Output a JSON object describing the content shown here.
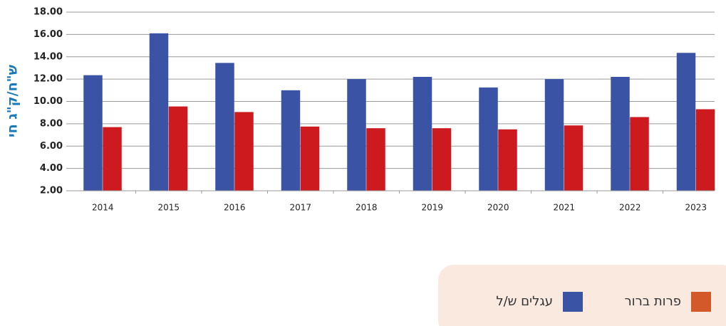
{
  "chart_data": {
    "type": "bar",
    "y_label": "ש\"ח/ק\"ג חי",
    "categories": [
      "2014",
      "2015",
      "2016",
      "2017",
      "2018",
      "2019",
      "2020",
      "2021",
      "2022",
      "2023"
    ],
    "series": [
      {
        "name": "עגלים ש/ל",
        "color": "#3a53a4",
        "legend_color": "#3a53a4",
        "values": [
          12.35,
          16.1,
          13.45,
          11.0,
          12.0,
          12.2,
          11.25,
          12.0,
          12.2,
          14.35
        ]
      },
      {
        "name": "פרות ברור",
        "color": "#cc1a1f",
        "legend_color": "#d3582a",
        "values": [
          7.7,
          9.55,
          9.05,
          7.75,
          7.6,
          7.6,
          7.5,
          7.85,
          8.6,
          9.3
        ]
      }
    ],
    "ylim": [
      2,
      18
    ],
    "yticks": [
      {
        "value": 2,
        "label": "2.00"
      },
      {
        "value": 4,
        "label": "4.00"
      },
      {
        "value": 6,
        "label": "6.00"
      },
      {
        "value": 8,
        "label": "8.00"
      },
      {
        "value": 10,
        "label": "10.00"
      },
      {
        "value": 12,
        "label": "12.00"
      },
      {
        "value": 14,
        "label": "14.00"
      },
      {
        "value": 16,
        "label": "16.00"
      },
      {
        "value": 18,
        "label": "18.00"
      }
    ],
    "grid": true
  }
}
